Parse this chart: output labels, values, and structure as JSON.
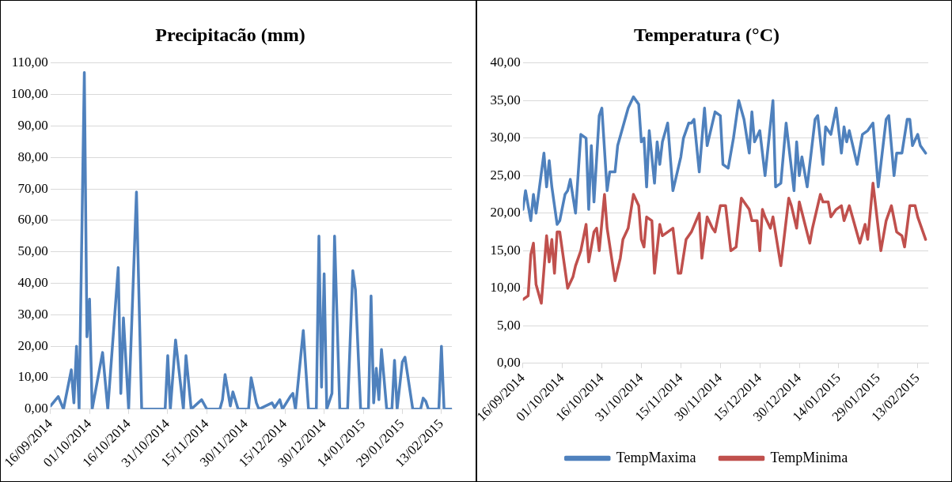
{
  "chart_data": [
    {
      "type": "line",
      "title": "Precipitacão (mm)",
      "grid": "y",
      "xlim": [
        "2014-09-16",
        "2015-02-17"
      ],
      "xticks": [
        {
          "value": "2014-09-16",
          "label": "16/09/2014"
        },
        {
          "value": "2014-10-01",
          "label": "01/10/2014"
        },
        {
          "value": "2014-10-16",
          "label": "16/10/2014"
        },
        {
          "value": "2014-10-31",
          "label": "31/10/2014"
        },
        {
          "value": "2014-11-15",
          "label": "15/11/2014"
        },
        {
          "value": "2014-11-30",
          "label": "30/11/2014"
        },
        {
          "value": "2014-12-15",
          "label": "15/12/2014"
        },
        {
          "value": "2014-12-30",
          "label": "30/12/2014"
        },
        {
          "value": "2015-01-14",
          "label": "14/01/2015"
        },
        {
          "value": "2015-01-29",
          "label": "29/01/2015"
        },
        {
          "value": "2015-02-13",
          "label": "13/02/2015"
        }
      ],
      "ylim": [
        0,
        110
      ],
      "yticks": [
        {
          "value": 0,
          "label": "0,00"
        },
        {
          "value": 10,
          "label": "10,00"
        },
        {
          "value": 20,
          "label": "20,00"
        },
        {
          "value": 30,
          "label": "30,00"
        },
        {
          "value": 40,
          "label": "40,00"
        },
        {
          "value": 50,
          "label": "50,00"
        },
        {
          "value": 60,
          "label": "60,00"
        },
        {
          "value": 70,
          "label": "70,00"
        },
        {
          "value": 80,
          "label": "80,00"
        },
        {
          "value": 90,
          "label": "90,00"
        },
        {
          "value": 100,
          "label": "100,00"
        },
        {
          "value": 110,
          "label": "110,00"
        }
      ],
      "series": [
        {
          "color": "#4f81bd",
          "x": [
            "2014-09-16",
            "2014-09-19",
            "2014-09-21",
            "2014-09-24",
            "2014-09-25",
            "2014-09-26",
            "2014-09-27",
            "2014-09-29",
            "2014-09-30",
            "2014-10-01",
            "2014-10-02",
            "2014-10-06",
            "2014-10-08",
            "2014-10-12",
            "2014-10-13",
            "2014-10-14",
            "2014-10-16",
            "2014-10-19",
            "2014-10-21",
            "2014-10-30",
            "2014-10-31",
            "2014-11-01",
            "2014-11-03",
            "2014-11-06",
            "2014-11-07",
            "2014-11-09",
            "2014-11-13",
            "2014-11-15",
            "2014-11-20",
            "2014-11-21",
            "2014-11-22",
            "2014-11-24",
            "2014-11-25",
            "2014-11-27",
            "2014-12-01",
            "2014-12-02",
            "2014-12-04",
            "2014-12-05",
            "2014-12-10",
            "2014-12-11",
            "2014-12-13",
            "2014-12-14",
            "2014-12-17",
            "2014-12-18",
            "2014-12-19",
            "2014-12-22",
            "2014-12-24",
            "2014-12-27",
            "2014-12-28",
            "2014-12-29",
            "2014-12-30",
            "2014-12-31",
            "2015-01-02",
            "2015-01-03",
            "2015-01-05",
            "2015-01-08",
            "2015-01-10",
            "2015-01-11",
            "2015-01-13",
            "2015-01-16",
            "2015-01-17",
            "2015-01-18",
            "2015-01-19",
            "2015-01-20",
            "2015-01-21",
            "2015-01-23",
            "2015-01-25",
            "2015-01-26",
            "2015-01-27",
            "2015-01-29",
            "2015-01-30",
            "2015-02-02",
            "2015-02-05",
            "2015-02-06",
            "2015-02-07",
            "2015-02-08",
            "2015-02-12",
            "2015-02-13",
            "2015-02-14",
            "2015-02-17"
          ],
          "values": [
            1,
            4,
            0,
            12.5,
            2,
            20,
            0,
            107,
            23,
            35,
            0,
            18,
            0,
            45,
            5,
            29,
            0,
            69,
            0,
            0,
            17,
            0,
            22,
            0,
            17,
            0,
            3,
            0,
            0,
            3,
            11,
            1,
            5.5,
            0,
            0,
            10,
            2,
            0,
            2,
            0.5,
            3,
            0,
            4,
            5,
            0,
            25,
            0,
            0,
            55,
            7,
            43,
            0,
            5,
            55,
            0,
            0,
            44,
            38,
            0,
            0,
            36,
            2,
            13,
            3,
            19,
            0,
            0,
            15.5,
            0,
            15,
            16.5,
            0,
            0,
            3.5,
            2.5,
            0,
            0,
            20,
            0,
            0
          ]
        }
      ]
    },
    {
      "type": "line",
      "title": "Temperatura (°C)",
      "grid": "y",
      "legend": "bottom",
      "xlim": [
        "2014-09-16",
        "2015-02-17"
      ],
      "xticks": [
        {
          "value": "2014-09-16",
          "label": "16/09/2014"
        },
        {
          "value": "2014-10-01",
          "label": "01/10/2014"
        },
        {
          "value": "2014-10-16",
          "label": "16/10/2014"
        },
        {
          "value": "2014-10-31",
          "label": "31/10/2014"
        },
        {
          "value": "2014-11-15",
          "label": "15/11/2014"
        },
        {
          "value": "2014-11-30",
          "label": "30/11/2014"
        },
        {
          "value": "2014-12-15",
          "label": "15/12/2014"
        },
        {
          "value": "2014-12-30",
          "label": "30/12/2014"
        },
        {
          "value": "2015-01-14",
          "label": "14/01/2015"
        },
        {
          "value": "2015-01-29",
          "label": "29/01/2015"
        },
        {
          "value": "2015-02-13",
          "label": "13/02/2015"
        }
      ],
      "ylim": [
        0,
        40
      ],
      "yticks": [
        {
          "value": 0,
          "label": "0,00"
        },
        {
          "value": 5,
          "label": "5,00"
        },
        {
          "value": 10,
          "label": "10,00"
        },
        {
          "value": 15,
          "label": "15,00"
        },
        {
          "value": 20,
          "label": "20,00"
        },
        {
          "value": 25,
          "label": "25,00"
        },
        {
          "value": 30,
          "label": "30,00"
        },
        {
          "value": 35,
          "label": "35,00"
        },
        {
          "value": 40,
          "label": "40,00"
        }
      ],
      "series": [
        {
          "name": "TempMaxima",
          "color": "#4f81bd",
          "x": [
            "2014-09-16",
            "2014-09-17",
            "2014-09-19",
            "2014-09-20",
            "2014-09-21",
            "2014-09-24",
            "2014-09-25",
            "2014-09-26",
            "2014-09-27",
            "2014-09-29",
            "2014-09-30",
            "2014-10-02",
            "2014-10-03",
            "2014-10-04",
            "2014-10-06",
            "2014-10-08",
            "2014-10-10",
            "2014-10-11",
            "2014-10-12",
            "2014-10-13",
            "2014-10-15",
            "2014-10-16",
            "2014-10-18",
            "2014-10-19",
            "2014-10-21",
            "2014-10-22",
            "2014-10-24",
            "2014-10-26",
            "2014-10-28",
            "2014-10-30",
            "2014-10-31",
            "2014-11-01",
            "2014-11-02",
            "2014-11-03",
            "2014-11-05",
            "2014-11-06",
            "2014-11-07",
            "2014-11-08",
            "2014-11-10",
            "2014-11-12",
            "2014-11-15",
            "2014-11-16",
            "2014-11-18",
            "2014-11-19",
            "2014-11-20",
            "2014-11-22",
            "2014-11-24",
            "2014-11-25",
            "2014-11-28",
            "2014-11-30",
            "2014-12-01",
            "2014-12-03",
            "2014-12-05",
            "2014-12-07",
            "2014-12-09",
            "2014-12-11",
            "2014-12-12",
            "2014-12-13",
            "2014-12-15",
            "2014-12-17",
            "2014-12-20",
            "2014-12-21",
            "2014-12-23",
            "2014-12-25",
            "2014-12-28",
            "2014-12-29",
            "2014-12-30",
            "2014-12-31",
            "2015-01-02",
            "2015-01-05",
            "2015-01-06",
            "2015-01-08",
            "2015-01-09",
            "2015-01-11",
            "2015-01-13",
            "2015-01-15",
            "2015-01-16",
            "2015-01-17",
            "2015-01-18",
            "2015-01-21",
            "2015-01-23",
            "2015-01-25",
            "2015-01-27",
            "2015-01-29",
            "2015-02-01",
            "2015-02-02",
            "2015-02-04",
            "2015-02-05",
            "2015-02-07",
            "2015-02-09",
            "2015-02-10",
            "2015-02-11",
            "2015-02-13",
            "2015-02-14",
            "2015-02-16"
          ],
          "values": [
            20.5,
            23,
            19,
            22.5,
            20,
            28,
            23.5,
            27,
            23.5,
            18.5,
            19,
            22.5,
            23,
            24.5,
            20,
            30.5,
            30,
            20.5,
            29,
            21.5,
            33,
            34,
            23,
            25.5,
            25.5,
            29,
            31.5,
            34,
            35.5,
            34.5,
            29.5,
            30,
            23.5,
            31,
            24,
            29.5,
            26.5,
            29.5,
            32,
            23,
            27.5,
            30,
            32,
            32,
            32.5,
            25.5,
            34,
            29,
            33.5,
            33,
            26.5,
            26,
            30,
            35,
            32.5,
            28,
            33.5,
            29.5,
            31,
            25,
            35,
            23.5,
            24,
            32,
            23,
            29.5,
            25,
            27.5,
            23.5,
            32.5,
            33,
            26.5,
            31.5,
            30.5,
            34,
            28,
            31.5,
            29.5,
            31,
            26.5,
            30.5,
            31,
            32,
            23.5,
            32.5,
            33,
            25,
            28,
            28,
            32.5,
            32.5,
            29,
            30.5,
            29,
            28
          ]
        },
        {
          "name": "TempMinima",
          "color": "#c0504d",
          "x": [
            "2014-09-16",
            "2014-09-18",
            "2014-09-19",
            "2014-09-20",
            "2014-09-21",
            "2014-09-23",
            "2014-09-25",
            "2014-09-26",
            "2014-09-27",
            "2014-09-28",
            "2014-09-29",
            "2014-09-30",
            "2014-10-03",
            "2014-10-05",
            "2014-10-06",
            "2014-10-08",
            "2014-10-10",
            "2014-10-11",
            "2014-10-13",
            "2014-10-14",
            "2014-10-15",
            "2014-10-17",
            "2014-10-18",
            "2014-10-21",
            "2014-10-23",
            "2014-10-24",
            "2014-10-26",
            "2014-10-28",
            "2014-10-30",
            "2014-10-31",
            "2014-11-01",
            "2014-11-02",
            "2014-11-04",
            "2014-11-05",
            "2014-11-07",
            "2014-11-08",
            "2014-11-10",
            "2014-11-12",
            "2014-11-14",
            "2014-11-15",
            "2014-11-17",
            "2014-11-19",
            "2014-11-22",
            "2014-11-23",
            "2014-11-25",
            "2014-11-27",
            "2014-11-28",
            "2014-11-30",
            "2014-12-02",
            "2014-12-04",
            "2014-12-06",
            "2014-12-08",
            "2014-12-11",
            "2014-12-12",
            "2014-12-14",
            "2014-12-15",
            "2014-12-16",
            "2014-12-17",
            "2014-12-19",
            "2014-12-20",
            "2014-12-23",
            "2014-12-26",
            "2014-12-27",
            "2014-12-29",
            "2014-12-30",
            "2015-01-03",
            "2015-01-04",
            "2015-01-07",
            "2015-01-08",
            "2015-01-10",
            "2015-01-11",
            "2015-01-13",
            "2015-01-15",
            "2015-01-16",
            "2015-01-18",
            "2015-01-22",
            "2015-01-24",
            "2015-01-25",
            "2015-01-27",
            "2015-01-28",
            "2015-01-30",
            "2015-02-01",
            "2015-02-03",
            "2015-02-05",
            "2015-02-07",
            "2015-02-08",
            "2015-02-10",
            "2015-02-12",
            "2015-02-13",
            "2015-02-16"
          ],
          "values": [
            8.5,
            9,
            14.5,
            16,
            10.5,
            8,
            17,
            13.5,
            16.5,
            12,
            17.5,
            17.5,
            10,
            11.5,
            13,
            15,
            18.5,
            13.5,
            17.5,
            18,
            15,
            22.5,
            18,
            11,
            14,
            16.5,
            18,
            22.5,
            21,
            16.5,
            15.5,
            19.5,
            19,
            12,
            18.5,
            17,
            17.5,
            18,
            12,
            12,
            16.5,
            17.5,
            20,
            14,
            19.5,
            18,
            17.5,
            21,
            21,
            15,
            15.5,
            22,
            20.5,
            19,
            19,
            15,
            20.5,
            19.5,
            18,
            19.5,
            13,
            22,
            21,
            18,
            21.5,
            16,
            18,
            22.5,
            21.5,
            21.5,
            19.5,
            20.5,
            21,
            19,
            21,
            16,
            18.5,
            16.5,
            24,
            21,
            15,
            19,
            21,
            17.5,
            17,
            15.5,
            21,
            21,
            19.5,
            16.5
          ]
        }
      ]
    }
  ]
}
